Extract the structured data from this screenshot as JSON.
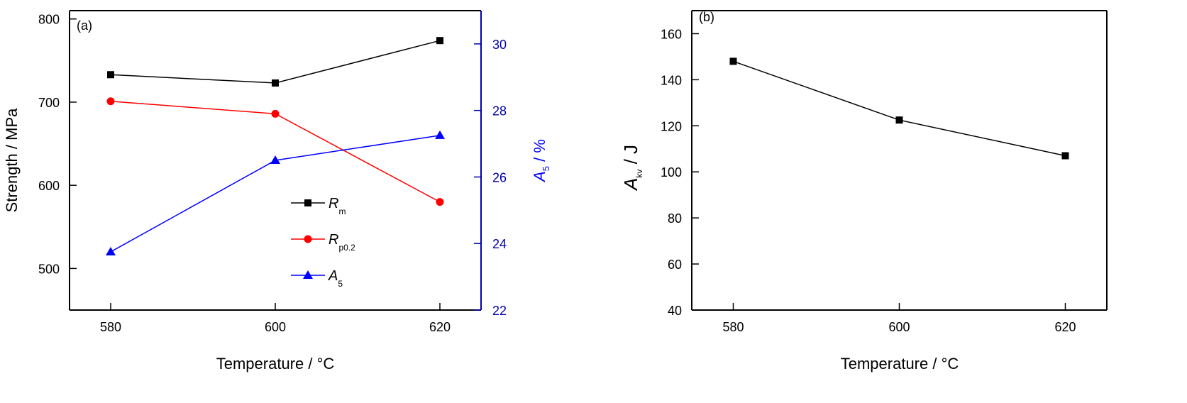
{
  "chart_data": [
    {
      "type": "line",
      "panel_label": "(a)",
      "xlabel": "Temperature / °C",
      "xlabel_main": "Temperature / ",
      "xlabel_unit_sup": "o",
      "xlabel_unit": "C",
      "ylabel": "Strength / MPa",
      "y2label": "A5 / %",
      "y2label_main": "A",
      "y2label_sub": "5",
      "y2label_rest": " / %",
      "x": [
        580,
        600,
        620
      ],
      "xticks": [
        "580",
        "600",
        "620"
      ],
      "xlim": [
        575,
        625
      ],
      "ylim": [
        450,
        810
      ],
      "yticks": [
        "500",
        "600",
        "700",
        "800"
      ],
      "y2lim": [
        22,
        31
      ],
      "y2ticks": [
        "22",
        "24",
        "26",
        "28",
        "30"
      ],
      "legend_position": "center",
      "series": [
        {
          "name": "Rm",
          "label_main": "R",
          "label_sub": "m",
          "axis": "left",
          "marker": "square",
          "color": "#000000",
          "values": [
            733,
            723,
            774
          ]
        },
        {
          "name": "Rp0.2",
          "label_main": "R",
          "label_sub": "p0.2",
          "axis": "left",
          "marker": "circle",
          "color": "#ff0000",
          "values": [
            701,
            686,
            580
          ]
        },
        {
          "name": "A5",
          "label_main": "A",
          "label_sub": "5",
          "axis": "right",
          "marker": "triangle",
          "color": "#0000ff",
          "values": [
            23.75,
            26.5,
            27.25
          ]
        }
      ],
      "right_axis_color": "#0000aa"
    },
    {
      "type": "line",
      "panel_label": "(b)",
      "xlabel": "Temperature / °C",
      "xlabel_main": "Temperature / ",
      "xlabel_unit_sup": "o",
      "xlabel_unit": "C",
      "ylabel": "Akv / J",
      "ylabel_main": "A",
      "ylabel_sub": "kv",
      "ylabel_rest": " / J",
      "x": [
        580,
        600,
        620
      ],
      "xticks": [
        "580",
        "600",
        "620"
      ],
      "xlim": [
        575,
        625
      ],
      "ylim": [
        40,
        170
      ],
      "yticks": [
        "40",
        "60",
        "80",
        "100",
        "120",
        "140",
        "160"
      ],
      "series": [
        {
          "name": "Akv",
          "marker": "square",
          "color": "#000000",
          "values": [
            148,
            122.5,
            107
          ]
        }
      ]
    }
  ]
}
